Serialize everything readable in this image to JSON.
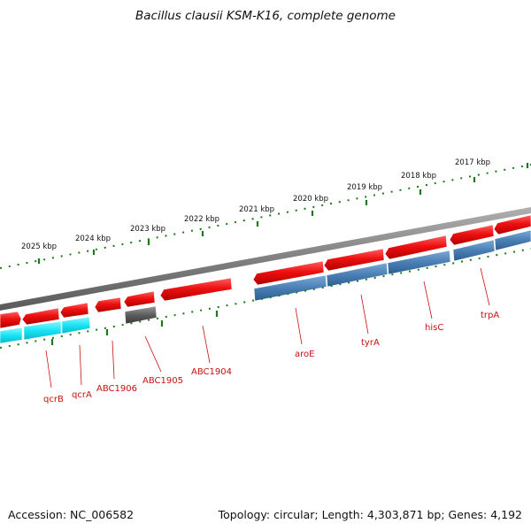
{
  "title": "Bacillus clausii KSM-K16, complete genome",
  "footer": {
    "accession": "Accession: NC_006582",
    "summary": "Topology: circular; Length: 4,303,871 bp; Genes: 4,192"
  },
  "colors": {
    "backbone": "#808080",
    "forward_gene": "#e8101a",
    "reverse_gene_cyan": "#18e4f4",
    "reverse_gene_blue": "#4a82b8",
    "gray_gene": "#5a5a5a",
    "tick": "#1a7a1a",
    "label": "#c81010"
  },
  "scale_labels": [
    "2025 kbp",
    "2024 kbp",
    "2023 kbp",
    "2022 kbp",
    "2021 kbp",
    "2020 kbp",
    "2019 kbp",
    "2018 kbp",
    "2017 kbp"
  ],
  "gene_labels": [
    "qcrB",
    "qcrA",
    "ABC1906",
    "ABC1905",
    "ABC1904",
    "aroE",
    "tyrA",
    "hisC",
    "trpA"
  ]
}
